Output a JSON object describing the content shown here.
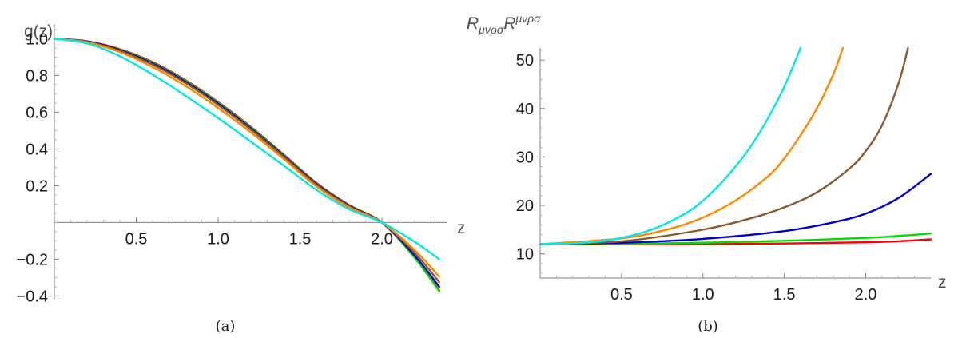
{
  "figure": {
    "captions": [
      "(a)",
      "(b)"
    ]
  },
  "chart_data": [
    {
      "type": "line",
      "title": "",
      "xlabel": "z",
      "ylabel": "g(z)",
      "xlim": [
        0,
        2.4
      ],
      "ylim": [
        -0.42,
        1.08
      ],
      "x_ticks": [
        "0.5",
        "1.0",
        "1.5",
        "2.0"
      ],
      "y_ticks": [
        "-0.4",
        "-0.2",
        "0.2",
        "0.4",
        "0.6",
        "0.8",
        "1.0"
      ],
      "grid": false,
      "x": [
        0,
        0.2,
        0.4,
        0.6,
        0.8,
        1.0,
        1.2,
        1.4,
        1.6,
        1.8,
        2.0,
        2.2,
        2.35
      ],
      "series": [
        {
          "color": "#ff0000",
          "values": [
            1.0,
            0.986,
            0.943,
            0.873,
            0.775,
            0.655,
            0.52,
            0.37,
            0.215,
            0.095,
            0.0,
            -0.19,
            -0.37
          ]
        },
        {
          "color": "#00dd00",
          "values": [
            1.0,
            0.985,
            0.94,
            0.869,
            0.771,
            0.651,
            0.516,
            0.367,
            0.212,
            0.093,
            0.0,
            -0.192,
            -0.375
          ]
        },
        {
          "color": "#0000cc",
          "values": [
            1.0,
            0.985,
            0.938,
            0.865,
            0.766,
            0.646,
            0.511,
            0.363,
            0.209,
            0.091,
            0.0,
            -0.18,
            -0.35
          ]
        },
        {
          "color": "#8b5a2b",
          "values": [
            1.0,
            0.983,
            0.934,
            0.859,
            0.759,
            0.639,
            0.505,
            0.358,
            0.205,
            0.088,
            0.0,
            -0.165,
            -0.325
          ]
        },
        {
          "color": "#ff8800",
          "values": [
            1.0,
            0.981,
            0.927,
            0.846,
            0.743,
            0.623,
            0.49,
            0.346,
            0.196,
            0.082,
            0.0,
            -0.15,
            -0.295
          ]
        },
        {
          "color": "#00e8e8",
          "values": [
            1.0,
            0.975,
            0.905,
            0.805,
            0.69,
            0.568,
            0.44,
            0.31,
            0.178,
            0.072,
            0.0,
            -0.105,
            -0.2
          ]
        }
      ]
    },
    {
      "type": "line",
      "title": "",
      "xlabel": "z",
      "ylabel": "R_{μνρσ}R^{μνρσ}",
      "ylabel_parts": {
        "r1": "R",
        "sub": "μνρσ",
        "r2": "R",
        "sup": "μνρσ"
      },
      "xlim": [
        0,
        2.4
      ],
      "ylim": [
        5,
        52.5
      ],
      "x_ticks": [
        "0.5",
        "1.0",
        "1.5",
        "2.0"
      ],
      "y_ticks": [
        "10",
        "20",
        "30",
        "40",
        "50"
      ],
      "grid": false,
      "series": [
        {
          "color": "#ff0000",
          "x": [
            0,
            0.5,
            1.0,
            1.5,
            2.0,
            2.2,
            2.4
          ],
          "values": [
            12.0,
            12.0,
            12.05,
            12.15,
            12.4,
            12.6,
            13.0
          ]
        },
        {
          "color": "#00dd00",
          "x": [
            0,
            0.5,
            1.0,
            1.5,
            2.0,
            2.2,
            2.4
          ],
          "values": [
            12.0,
            12.05,
            12.3,
            12.7,
            13.3,
            13.7,
            14.2
          ]
        },
        {
          "color": "#0000cc",
          "x": [
            0,
            0.5,
            1.0,
            1.5,
            1.8,
            2.0,
            2.2,
            2.4
          ],
          "values": [
            12.0,
            12.3,
            13.1,
            14.7,
            16.5,
            18.3,
            21.5,
            26.5
          ]
        },
        {
          "color": "#8b5a2b",
          "x": [
            0,
            0.5,
            1.0,
            1.3,
            1.5,
            1.7,
            1.9,
            2.0,
            2.1,
            2.2,
            2.26
          ],
          "values": [
            12.0,
            12.6,
            15.0,
            17.4,
            19.6,
            22.7,
            27.6,
            31.2,
            36.5,
            45.0,
            52.5
          ]
        },
        {
          "color": "#ff8800",
          "x": [
            0,
            0.5,
            0.8,
            1.0,
            1.2,
            1.4,
            1.5,
            1.6,
            1.7,
            1.8,
            1.86
          ],
          "values": [
            12.0,
            13.2,
            15.2,
            17.5,
            21.0,
            26.0,
            29.7,
            34.5,
            40.0,
            47.0,
            52.5
          ]
        },
        {
          "color": "#00e8e8",
          "x": [
            0,
            0.3,
            0.5,
            0.7,
            0.9,
            1.0,
            1.1,
            1.2,
            1.3,
            1.4,
            1.5,
            1.6
          ],
          "values": [
            12.0,
            12.4,
            13.3,
            15.2,
            18.5,
            21.0,
            24.2,
            28.0,
            32.5,
            38.0,
            44.5,
            52.5
          ]
        }
      ]
    }
  ]
}
